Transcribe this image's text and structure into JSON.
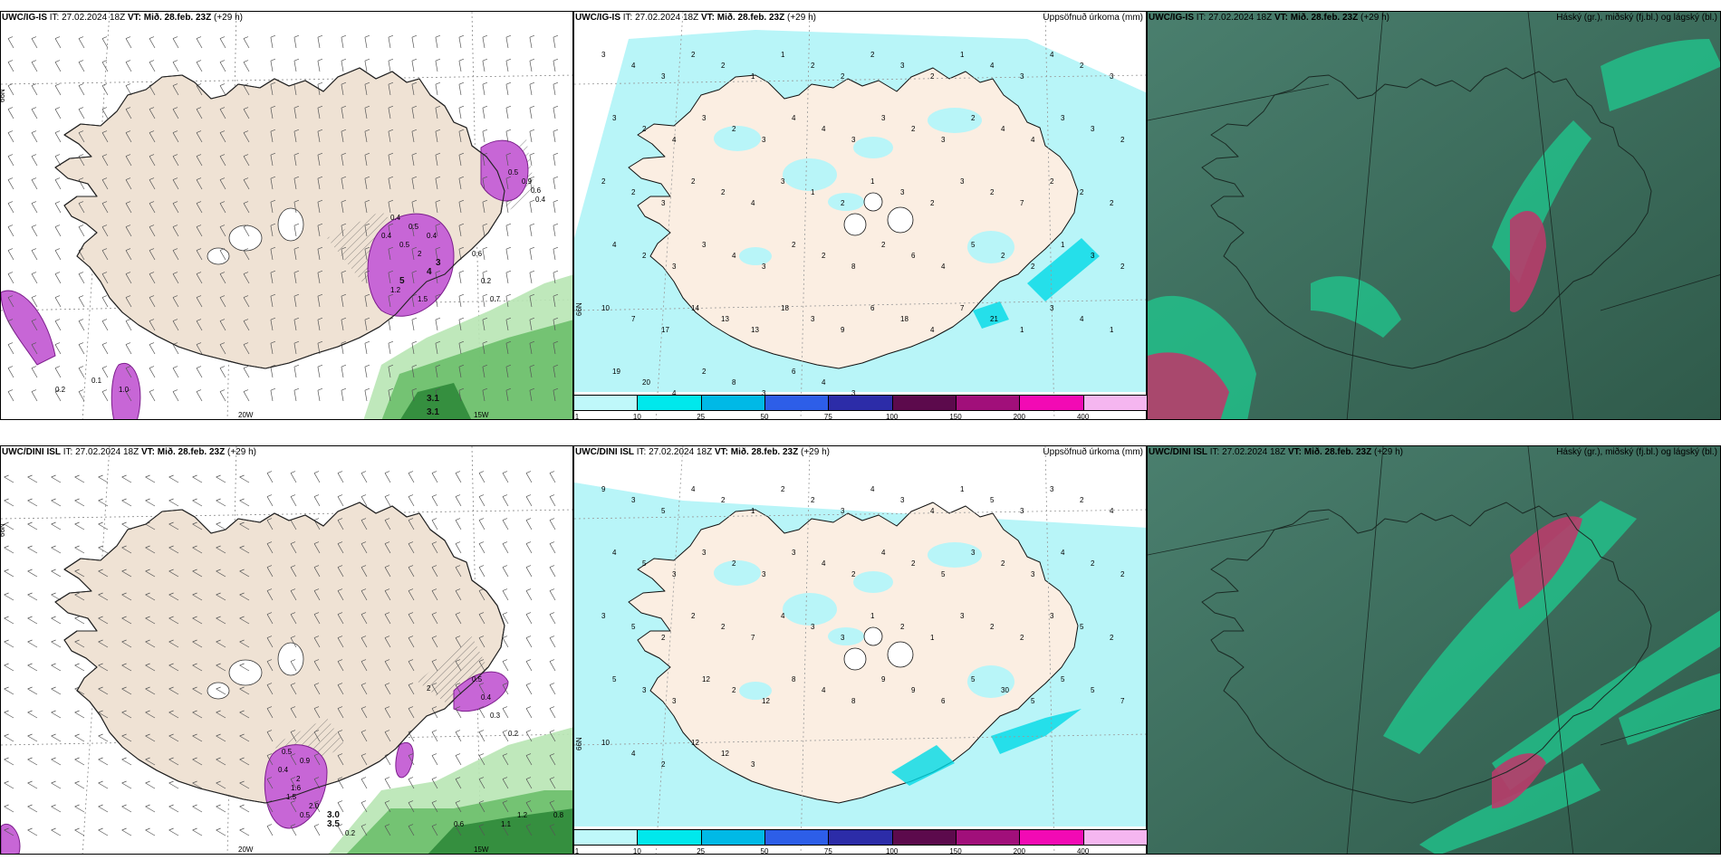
{
  "panels": [
    {
      "model": "UWC/IG-IS",
      "it": "IT: 27.02.2024 18Z",
      "vt": "VT: Mið. 28.feb. 23Z",
      "lead": "(+29 h)",
      "right_title": ""
    },
    {
      "model": "UWC/IG-IS",
      "it": "IT: 27.02.2024 18Z",
      "vt": "VT: Mið. 28.feb. 23Z",
      "lead": "(+29 h)",
      "right_title": "Uppsöfnuð úrkoma (mm)"
    },
    {
      "model": "UWC/IG-IS",
      "it": "IT: 27.02.2024 18Z",
      "vt": "VT: Mið. 28.feb. 23Z",
      "lead": "(+29 h)",
      "right_title": "Háský (gr.), miðský (fj.bl.) og lágský (bl.)"
    },
    {
      "model": "UWC/DINI ISL",
      "it": "IT: 27.02.2024 18Z",
      "vt": "VT: Mið. 28.feb. 23Z",
      "lead": "(+29 h)",
      "right_title": ""
    },
    {
      "model": "UWC/DINI ISL",
      "it": "IT: 27.02.2024 18Z",
      "vt": "VT: Mið. 28.feb. 23Z",
      "lead": "(+29 h)",
      "right_title": "Uppsöfnuð úrkoma (mm)"
    },
    {
      "model": "UWC/DINI ISL",
      "it": "IT: 27.02.2024 18Z",
      "vt": "VT: Mið. 28.feb. 23Z",
      "lead": "(+29 h)",
      "right_title": "Háský (gr.), miðský (fj.bl.) og lágský (bl.)"
    }
  ],
  "axis_labels": {
    "lat": "66N",
    "lon20": "20W",
    "lon15": "15W"
  },
  "colorbar": {
    "ticks": [
      "1",
      "10",
      "25",
      "50",
      "75",
      "100",
      "150",
      "200",
      "400"
    ],
    "colors": [
      "#bff8fa",
      "#00e8ec",
      "#00b9e6",
      "#2d5ee8",
      "#2c2ca8",
      "#5c0a4c",
      "#a10f7a",
      "#f20ab4",
      "#f5b6f0"
    ]
  },
  "top_precip_values": [
    "3",
    "4",
    "3",
    "2",
    "2",
    "1",
    "1",
    "2",
    "2",
    "2",
    "3",
    "2",
    "1",
    "4",
    "3",
    "4",
    "2",
    "3",
    "3",
    "2",
    "4",
    "3",
    "2",
    "3",
    "4",
    "4",
    "3",
    "3",
    "2",
    "3",
    "2",
    "4",
    "4",
    "3",
    "3",
    "2",
    "2",
    "2",
    "3",
    "2",
    "2",
    "4",
    "3",
    "1",
    "2",
    "1",
    "3",
    "2",
    "3",
    "2",
    "7",
    "2",
    "2",
    "2",
    "4",
    "2",
    "3",
    "3",
    "4",
    "3",
    "2",
    "2",
    "8",
    "2",
    "6",
    "4",
    "5",
    "2",
    "2",
    "1",
    "3",
    "2",
    "10",
    "7",
    "17",
    "14",
    "13",
    "13",
    "18",
    "3",
    "9",
    "6",
    "18",
    "4",
    "7",
    "21",
    "1",
    "3",
    "4",
    "1",
    "19",
    "20",
    "4",
    "2",
    "8",
    "3",
    "6",
    "4",
    "3"
  ],
  "bottom_precip_values": [
    "9",
    "3",
    "5",
    "4",
    "2",
    "1",
    "2",
    "2",
    "3",
    "4",
    "3",
    "4",
    "1",
    "5",
    "3",
    "3",
    "2",
    "4",
    "4",
    "5",
    "3",
    "3",
    "2",
    "3",
    "3",
    "4",
    "2",
    "4",
    "2",
    "5",
    "3",
    "2",
    "3",
    "4",
    "2",
    "2",
    "3",
    "5",
    "2",
    "2",
    "2",
    "7",
    "4",
    "3",
    "3",
    "1",
    "2",
    "1",
    "3",
    "2",
    "2",
    "3",
    "5",
    "2",
    "5",
    "3",
    "3",
    "12",
    "2",
    "12",
    "8",
    "4",
    "8",
    "9",
    "9",
    "6",
    "5",
    "30",
    "5",
    "5",
    "5",
    "7",
    "10",
    "4",
    "2",
    "12",
    "12",
    "3"
  ],
  "top_wind_values": [
    "0.4",
    "0.5",
    "0.4",
    "0.5",
    "0.4",
    "2",
    "3",
    "4",
    "5",
    "1.2",
    "1.5",
    "0.5",
    "0.9",
    "0.6",
    "0.4",
    "0.6",
    "0.2",
    "0.7",
    "0.1",
    "3.1",
    "3.1",
    "1.0",
    "0.2"
  ],
  "bottom_wind_values": [
    "0.5",
    "0.9",
    "0.4",
    "2",
    "1.6",
    "1.5",
    "2.0",
    "0.5",
    "3.0",
    "3.5",
    "0.2",
    "0.6",
    "1.1",
    "1.2",
    "0.8",
    "2",
    "0.5",
    "0.4",
    "0.3",
    "0.2"
  ]
}
